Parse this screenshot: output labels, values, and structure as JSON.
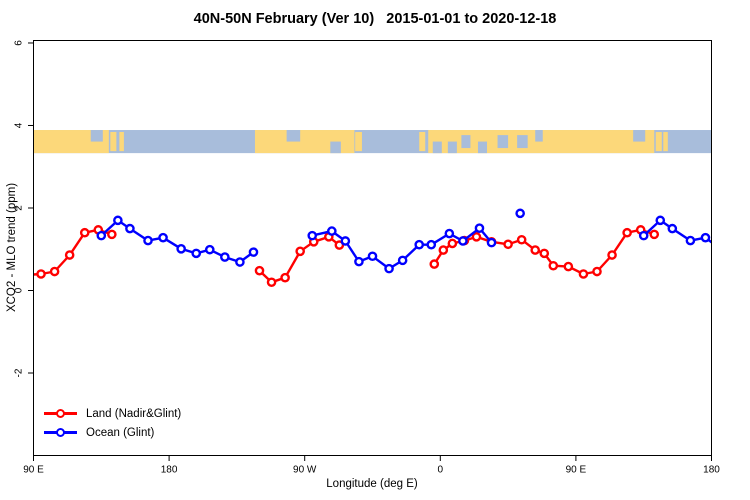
{
  "chart_data": {
    "type": "line",
    "title": "40N-50N February (Ver 10)   2015-01-01 to 2020-12-18",
    "xlabel": "Longitude (deg E)",
    "ylabel": "XCO2 - MLO trend (ppm)",
    "x_axis": {
      "span_deg": 450,
      "note": "axis starts at 90E and wraps eastward around the globe 450 degrees",
      "ticks": [
        {
          "pos_deg": 0,
          "label": "90 E"
        },
        {
          "pos_deg": 90,
          "label": "180"
        },
        {
          "pos_deg": 180,
          "label": "90 W"
        },
        {
          "pos_deg": 270,
          "label": "0"
        },
        {
          "pos_deg": 360,
          "label": "90 E"
        },
        {
          "pos_deg": 450,
          "label": "180"
        }
      ]
    },
    "y_axis": {
      "ylim": [
        -4.0,
        6.06
      ],
      "tick_values": [
        -2,
        0,
        2,
        4,
        6
      ],
      "tick_labels": [
        "-2",
        "0",
        "2",
        "4",
        "6"
      ]
    },
    "map_band": {
      "comment": "land/ocean strip for latitude band 40N-50N drawn across the plot",
      "top_value": 3.89,
      "bottom_value": 3.33,
      "ocean_color": "#a8bddb",
      "land_color": "#fcd87a",
      "land_segments_deg": [
        [
          0,
          50
        ],
        [
          147,
          213
        ],
        [
          262,
          412
        ]
      ],
      "island_specks_deg": [
        [
          51,
          55
        ],
        [
          57,
          60
        ],
        [
          213.5,
          218
        ],
        [
          256,
          260
        ],
        [
          413,
          417
        ],
        [
          418,
          421
        ]
      ],
      "ocean_inlets": [
        {
          "range": [
            38,
            46
          ],
          "part": "top"
        },
        {
          "range": [
            168,
            177
          ],
          "part": "top"
        },
        {
          "range": [
            197,
            204
          ],
          "part": "bottom"
        },
        {
          "range": [
            265,
            271
          ],
          "part": "bottom"
        },
        {
          "range": [
            275,
            281
          ],
          "part": "bottom"
        },
        {
          "range": [
            284,
            290
          ],
          "part": "middle"
        },
        {
          "range": [
            295,
            301
          ],
          "part": "bottom"
        },
        {
          "range": [
            308,
            315
          ],
          "part": "middle"
        },
        {
          "range": [
            321,
            328
          ],
          "part": "middle"
        },
        {
          "range": [
            333,
            338
          ],
          "part": "top"
        },
        {
          "range": [
            398,
            406
          ],
          "part": "top"
        }
      ]
    },
    "series": [
      {
        "name": "Land (Nadir&Glint)",
        "color": "#ff0000",
        "marker": "open-circle",
        "segments": [
          [
            [
              -3,
              0.38
            ],
            [
              5,
              0.4
            ],
            [
              14,
              0.46
            ],
            [
              24,
              0.86
            ],
            [
              34,
              1.4
            ],
            [
              43,
              1.47
            ],
            [
              52,
              1.36
            ]
          ],
          [
            [
              150,
              0.48
            ],
            [
              158,
              0.2
            ],
            [
              167,
              0.31
            ],
            [
              177,
              0.95
            ],
            [
              186,
              1.18
            ],
            [
              196,
              1.3
            ],
            [
              203,
              1.1
            ]
          ],
          [
            [
              266,
              0.64
            ],
            [
              272,
              0.98
            ],
            [
              278,
              1.14
            ],
            [
              286,
              1.21
            ],
            [
              294,
              1.3
            ],
            [
              304,
              1.18
            ],
            [
              315,
              1.12
            ],
            [
              324,
              1.23
            ],
            [
              333,
              0.98
            ],
            [
              339,
              0.9
            ],
            [
              345,
              0.6
            ],
            [
              355,
              0.58
            ],
            [
              365,
              0.4
            ],
            [
              374,
              0.46
            ],
            [
              384,
              0.86
            ],
            [
              394,
              1.4
            ],
            [
              403,
              1.47
            ],
            [
              412,
              1.36
            ]
          ]
        ],
        "isolated_points": []
      },
      {
        "name": "Ocean (Glint)",
        "color": "#0000ff",
        "marker": "open-circle",
        "segments": [
          [
            [
              45,
              1.33
            ],
            [
              56,
              1.7
            ],
            [
              64,
              1.5
            ],
            [
              76,
              1.21
            ],
            [
              86,
              1.28
            ],
            [
              98,
              1.01
            ],
            [
              108,
              0.9
            ],
            [
              117,
              0.99
            ],
            [
              127,
              0.81
            ],
            [
              137,
              0.69
            ],
            [
              146,
              0.93
            ]
          ],
          [
            [
              185,
              1.33
            ],
            [
              198,
              1.44
            ],
            [
              207,
              1.2
            ],
            [
              216,
              0.7
            ],
            [
              225,
              0.83
            ],
            [
              236,
              0.53
            ],
            [
              245,
              0.73
            ],
            [
              256,
              1.11
            ],
            [
              264,
              1.11
            ],
            [
              276,
              1.38
            ],
            [
              285,
              1.2
            ],
            [
              296,
              1.51
            ],
            [
              304,
              1.16
            ]
          ],
          [
            [
              405,
              1.33
            ],
            [
              416,
              1.7
            ],
            [
              424,
              1.5
            ],
            [
              436,
              1.21
            ],
            [
              446,
              1.28
            ],
            [
              456,
              1.0
            ]
          ]
        ],
        "isolated_points": [
          [
            323,
            1.87
          ]
        ]
      }
    ]
  },
  "legend": {
    "items": [
      {
        "label": "Land (Nadir&Glint)",
        "color": "#ff0000"
      },
      {
        "label": "Ocean (Glint)",
        "color": "#0000ff"
      }
    ]
  }
}
